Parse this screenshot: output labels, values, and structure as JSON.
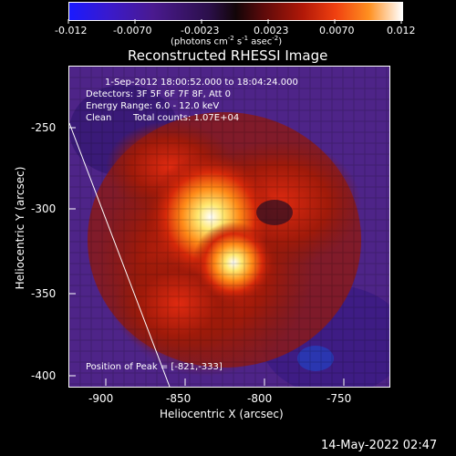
{
  "colorbar": {
    "ticks": [
      "-0.012",
      "-0.0070",
      "-0.0023",
      "0.0023",
      "0.0070",
      "0.012"
    ],
    "units_main": "(photons cm",
    "units_sup1": "-2",
    "units_s": " s",
    "units_sup2": "-1",
    "units_asec": " asec",
    "units_sup3": "-2",
    "units_end": ")"
  },
  "image": {
    "title": "Reconstructed RHESSI Image",
    "time_range": "1-Sep-2012 18:00:52.000 to 18:04:24.000",
    "detectors": "Detectors: 3F 5F 6F 7F 8F, Att 0",
    "energy_range": "Energy Range: 6.0 - 12.0 keV",
    "clean_label": "Clean",
    "total_counts": "Total counts: 1.07E+04",
    "peak_position": "Position of Peak = [-821,-333]"
  },
  "axes": {
    "x_label": "Heliocentric X (arcsec)",
    "y_label": "Heliocentric Y (arcsec)",
    "x_ticks": [
      "-900",
      "-850",
      "-800",
      "-750"
    ],
    "y_ticks": [
      "-250",
      "-300",
      "-350",
      "-400"
    ]
  },
  "footer": {
    "date": "14-May-2022 02:47"
  }
}
